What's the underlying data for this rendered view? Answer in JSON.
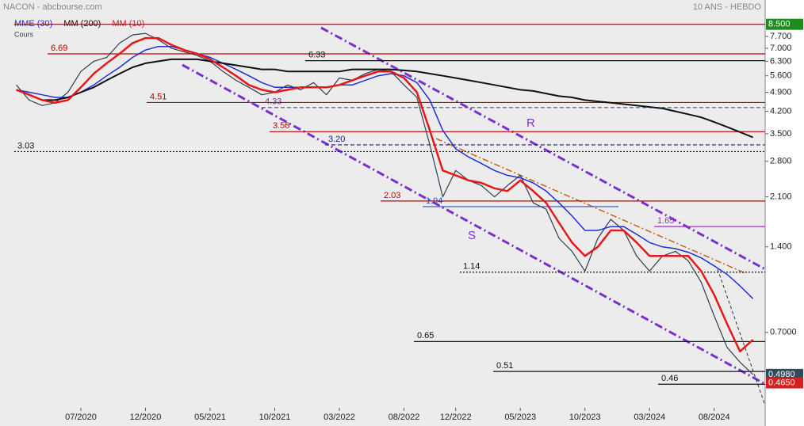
{
  "chart_data": {
    "type": "line",
    "title": "NACON - abcbourse.com",
    "subtitle": "10 ANS - HEBDO",
    "log_scale": true,
    "categories": [
      null,
      null,
      null,
      null,
      null,
      "07/2020",
      null,
      null,
      null,
      null,
      "12/2020",
      null,
      null,
      null,
      null,
      "05/2021",
      null,
      null,
      null,
      null,
      "10/2021",
      null,
      null,
      null,
      null,
      "03/2022",
      null,
      null,
      null,
      null,
      "08/2022",
      null,
      null,
      null,
      "12/2022",
      null,
      null,
      null,
      null,
      "05/2023",
      null,
      null,
      null,
      null,
      "10/2023",
      null,
      null,
      null,
      null,
      "03/2024",
      null,
      null,
      null,
      null,
      "08/2024",
      null,
      null,
      null
    ],
    "series": [
      {
        "name": "Cours",
        "color": "#2f3f4f",
        "width": 1.2,
        "values": [
          5.2,
          4.6,
          4.4,
          4.5,
          4.9,
          5.8,
          6.3,
          6.5,
          7.3,
          7.8,
          7.9,
          7.5,
          7.0,
          6.8,
          6.6,
          6.3,
          5.8,
          5.4,
          5.1,
          4.8,
          4.9,
          5.2,
          5.0,
          5.3,
          4.8,
          5.5,
          5.4,
          5.7,
          5.9,
          5.8,
          5.2,
          4.7,
          3.2,
          2.1,
          2.6,
          2.4,
          2.3,
          2.1,
          2.3,
          2.5,
          2.0,
          1.9,
          1.5,
          1.35,
          1.15,
          1.5,
          1.75,
          1.6,
          1.3,
          1.15,
          1.3,
          1.35,
          1.25,
          1.05,
          0.8,
          0.62,
          0.55,
          0.498
        ]
      },
      {
        "name": "MME (30)",
        "color": "#1f2fd8",
        "width": 1.5,
        "values": [
          5.0,
          4.9,
          4.8,
          4.7,
          4.7,
          4.9,
          5.2,
          5.6,
          6.0,
          6.5,
          6.9,
          7.1,
          7.1,
          6.9,
          6.7,
          6.5,
          6.2,
          5.9,
          5.6,
          5.3,
          5.1,
          5.1,
          5.1,
          5.1,
          5.1,
          5.2,
          5.2,
          5.4,
          5.6,
          5.7,
          5.6,
          5.3,
          4.6,
          3.6,
          3.1,
          2.9,
          2.75,
          2.6,
          2.5,
          2.45,
          2.35,
          2.2,
          2.0,
          1.8,
          1.6,
          1.6,
          1.65,
          1.65,
          1.55,
          1.45,
          1.4,
          1.38,
          1.34,
          1.28,
          1.2,
          1.12,
          1.02,
          0.92
        ]
      },
      {
        "name": "MM (200)",
        "color": "#111111",
        "width": 2,
        "values": [
          null,
          null,
          4.6,
          4.6,
          4.7,
          4.9,
          5.1,
          5.4,
          5.7,
          6.0,
          6.2,
          6.3,
          6.4,
          6.4,
          6.4,
          6.3,
          6.2,
          6.1,
          6.0,
          5.9,
          5.9,
          5.8,
          5.8,
          5.8,
          5.8,
          5.8,
          5.9,
          5.9,
          5.9,
          5.9,
          5.85,
          5.8,
          5.7,
          5.6,
          5.5,
          5.4,
          5.3,
          5.2,
          5.1,
          5.0,
          4.95,
          4.85,
          4.75,
          4.7,
          4.6,
          4.55,
          4.5,
          4.45,
          4.4,
          4.35,
          4.3,
          4.2,
          4.1,
          4.0,
          3.85,
          3.7,
          3.55,
          3.4
        ]
      },
      {
        "name": "MM (10)",
        "color": "#e81818",
        "width": 2.5,
        "values": [
          5.0,
          4.8,
          4.6,
          4.5,
          4.6,
          5.1,
          5.7,
          6.2,
          6.7,
          7.3,
          7.6,
          7.6,
          7.2,
          6.9,
          6.7,
          6.4,
          6.0,
          5.6,
          5.2,
          5.0,
          4.9,
          5.0,
          5.1,
          5.1,
          5.1,
          5.2,
          5.4,
          5.6,
          5.8,
          5.8,
          5.5,
          4.9,
          3.6,
          2.6,
          2.5,
          2.4,
          2.35,
          2.25,
          2.2,
          2.4,
          2.2,
          2.0,
          1.7,
          1.45,
          1.3,
          1.4,
          1.6,
          1.6,
          1.45,
          1.3,
          1.3,
          1.3,
          1.3,
          1.15,
          0.95,
          0.75,
          0.6,
          0.66
        ]
      }
    ],
    "ylim": [
      0.38,
      9.4
    ],
    "yticks": [
      {
        "value": 7.7,
        "label": "7.700"
      },
      {
        "value": 7.0,
        "label": "7.000"
      },
      {
        "value": 6.3,
        "label": "6.300"
      },
      {
        "value": 5.6,
        "label": "5.600"
      },
      {
        "value": 4.9,
        "label": "4.900"
      },
      {
        "value": 4.2,
        "label": "4.200"
      },
      {
        "value": 3.5,
        "label": "3.500"
      },
      {
        "value": 2.8,
        "label": "2.800"
      },
      {
        "value": 2.1,
        "label": "2.100"
      },
      {
        "value": 1.4,
        "label": "1.400"
      },
      {
        "value": 0.7,
        "label": "0.7000"
      }
    ],
    "price_tags": [
      {
        "value": 8.5,
        "label": "8.500",
        "color": "#1e8c1e"
      },
      {
        "value": 0.498,
        "label": "0.4980",
        "color": "#2f4a5a"
      },
      {
        "value": 0.465,
        "label": "0.4650",
        "color": "#d42020"
      }
    ],
    "levels": [
      {
        "value": 6.69,
        "label": "6.69",
        "color": "#c00000",
        "style": "solid"
      },
      {
        "value": 6.33,
        "label": "6.33",
        "color": "#111111",
        "style": "solid"
      },
      {
        "value": 4.51,
        "label": "4.51",
        "color": "#c00000",
        "style": "solid"
      },
      {
        "value": 4.33,
        "label": "4.33",
        "color": "#7030a0",
        "style": "dashed"
      },
      {
        "value": 3.56,
        "label": "3.56",
        "color": "#c00000",
        "style": "solid"
      },
      {
        "value": 3.2,
        "label": "3.20",
        "color": "#1a1a8a",
        "style": "dashed"
      },
      {
        "value": 3.03,
        "label": "3.03",
        "color": "#111111",
        "style": "dotted"
      },
      {
        "value": 2.03,
        "label": "2.03",
        "color": "#c00000",
        "style": "solid"
      },
      {
        "value": 1.94,
        "label": "1.94",
        "color": "#3050c0",
        "style": "solid"
      },
      {
        "value": 1.65,
        "label": "1.65",
        "color": "#a030c0",
        "style": "solid"
      },
      {
        "value": 1.14,
        "label": "1.14",
        "color": "#111111",
        "style": "dotted"
      },
      {
        "value": 0.65,
        "label": "0.65",
        "color": "#111111",
        "style": "solid"
      },
      {
        "value": 0.51,
        "label": "0.51",
        "color": "#111111",
        "style": "solid"
      },
      {
        "value": 0.46,
        "label": "0.46",
        "color": "#111111",
        "style": "solid"
      }
    ],
    "annotations": [
      "R",
      "S"
    ]
  }
}
